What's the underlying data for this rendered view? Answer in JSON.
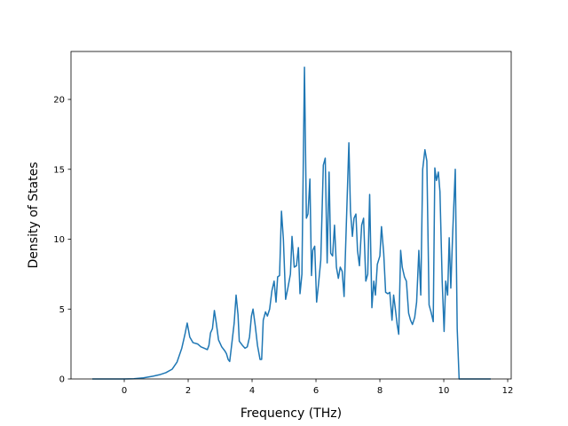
{
  "chart_data": {
    "type": "line",
    "x_label": "Frequency (THz)",
    "y_label": "Density of States",
    "color": "#1f77b4",
    "xlim": [
      -1.667,
      12.11
    ],
    "ylim": [
      0,
      23.43
    ],
    "xticks": [
      0,
      2,
      4,
      6,
      8,
      10,
      12
    ],
    "yticks": [
      0,
      5,
      10,
      15,
      20
    ],
    "x": [
      -1.0,
      -0.5,
      0,
      0.3,
      0.6,
      0.9,
      1.1,
      1.3,
      1.5,
      1.65,
      1.8,
      1.9,
      1.97,
      2.05,
      2.15,
      2.3,
      2.4,
      2.5,
      2.6,
      2.65,
      2.7,
      2.76,
      2.82,
      2.88,
      2.95,
      3.05,
      3.15,
      3.2,
      3.25,
      3.3,
      3.38,
      3.44,
      3.5,
      3.56,
      3.6,
      3.7,
      3.78,
      3.85,
      3.92,
      3.98,
      4.03,
      4.1,
      4.17,
      4.25,
      4.3,
      4.35,
      4.42,
      4.48,
      4.55,
      4.62,
      4.69,
      4.75,
      4.8,
      4.86,
      4.92,
      4.98,
      5.05,
      5.12,
      5.2,
      5.25,
      5.32,
      5.39,
      5.45,
      5.5,
      5.56,
      5.64,
      5.7,
      5.75,
      5.81,
      5.86,
      5.9,
      5.96,
      6.02,
      6.08,
      6.15,
      6.23,
      6.29,
      6.35,
      6.41,
      6.46,
      6.52,
      6.58,
      6.64,
      6.7,
      6.76,
      6.82,
      6.88,
      7.03,
      7.08,
      7.14,
      7.19,
      7.25,
      7.3,
      7.36,
      7.43,
      7.49,
      7.56,
      7.62,
      7.68,
      7.75,
      7.81,
      7.86,
      7.92,
      8.0,
      8.05,
      8.12,
      8.18,
      8.25,
      8.31,
      8.38,
      8.43,
      8.48,
      8.54,
      8.59,
      8.65,
      8.7,
      8.77,
      8.83,
      8.9,
      8.96,
      9.02,
      9.09,
      9.15,
      9.22,
      9.28,
      9.34,
      9.41,
      9.47,
      9.54,
      9.6,
      9.67,
      9.72,
      9.77,
      9.83,
      9.88,
      9.95,
      10.01,
      10.06,
      10.12,
      10.17,
      10.22,
      10.28,
      10.36,
      10.42,
      10.48,
      11.0,
      11.47
    ],
    "values": [
      0,
      0,
      0,
      0.02,
      0.08,
      0.2,
      0.3,
      0.45,
      0.7,
      1.2,
      2.2,
      3.2,
      4.0,
      3.0,
      2.6,
      2.5,
      2.3,
      2.2,
      2.1,
      2.4,
      3.3,
      3.6,
      4.9,
      4.0,
      2.8,
      2.3,
      2.0,
      1.8,
      1.4,
      1.25,
      2.8,
      4.0,
      6.0,
      4.6,
      2.7,
      2.4,
      2.2,
      2.3,
      3.0,
      4.5,
      5.0,
      3.8,
      2.4,
      1.4,
      1.4,
      4.2,
      4.8,
      4.5,
      5.0,
      6.3,
      7.0,
      5.5,
      7.3,
      7.4,
      12.0,
      10.0,
      5.7,
      6.5,
      7.5,
      10.2,
      8.0,
      8.1,
      9.4,
      6.1,
      7.5,
      22.3,
      11.5,
      11.8,
      14.3,
      7.4,
      9.2,
      9.5,
      5.5,
      6.8,
      8.5,
      15.3,
      15.8,
      8.3,
      14.8,
      9.0,
      8.8,
      11.0,
      8.0,
      7.2,
      8.0,
      7.7,
      5.9,
      16.9,
      12.0,
      10.2,
      11.5,
      11.8,
      9.2,
      8.1,
      11.0,
      11.5,
      7.0,
      7.5,
      13.2,
      5.1,
      7.0,
      6.0,
      8.2,
      8.8,
      10.9,
      9.0,
      6.2,
      6.1,
      6.2,
      4.2,
      6.0,
      5.1,
      3.9,
      3.2,
      9.2,
      8.0,
      7.3,
      7.0,
      4.7,
      4.2,
      3.9,
      4.4,
      5.5,
      9.2,
      6.0,
      15.0,
      16.4,
      15.6,
      5.3,
      4.8,
      4.1,
      15.1,
      14.2,
      14.8,
      13.4,
      7.0,
      3.4,
      7.0,
      6.0,
      10.1,
      6.5,
      10.5,
      15.0,
      3.6,
      0,
      0,
      0
    ]
  }
}
